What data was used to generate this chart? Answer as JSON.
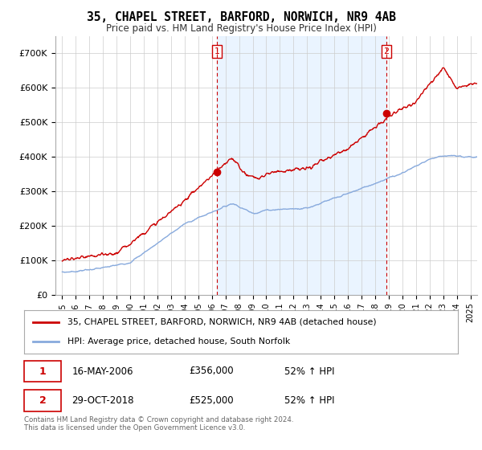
{
  "title": "35, CHAPEL STREET, BARFORD, NORWICH, NR9 4AB",
  "subtitle": "Price paid vs. HM Land Registry's House Price Index (HPI)",
  "ylabel_ticks": [
    "£0",
    "£100K",
    "£200K",
    "£300K",
    "£400K",
    "£500K",
    "£600K",
    "£700K"
  ],
  "ytick_vals": [
    0,
    100000,
    200000,
    300000,
    400000,
    500000,
    600000,
    700000
  ],
  "ylim": [
    0,
    750000
  ],
  "xlim_start": 1994.5,
  "xlim_end": 2025.5,
  "transaction1": {
    "date_num": 2006.37,
    "price": 356000,
    "label": "1",
    "date_str": "16-MAY-2006",
    "price_str": "£356,000",
    "hpi_pct": "52% ↑ HPI"
  },
  "transaction2": {
    "date_num": 2018.83,
    "price": 525000,
    "label": "2",
    "date_str": "29-OCT-2018",
    "price_str": "£525,000",
    "hpi_pct": "52% ↑ HPI"
  },
  "legend_entry1": "35, CHAPEL STREET, BARFORD, NORWICH, NR9 4AB (detached house)",
  "legend_entry2": "HPI: Average price, detached house, South Norfolk",
  "footnote": "Contains HM Land Registry data © Crown copyright and database right 2024.\nThis data is licensed under the Open Government Licence v3.0.",
  "line_color_red": "#cc0000",
  "line_color_blue": "#88aadd",
  "dashed_line_color": "#cc0000",
  "bg_between_color": "#ddeeff",
  "background_color": "#ffffff",
  "grid_color": "#cccccc",
  "xtick_years": [
    1995,
    1996,
    1997,
    1998,
    1999,
    2000,
    2001,
    2002,
    2003,
    2004,
    2005,
    2006,
    2007,
    2008,
    2009,
    2010,
    2011,
    2012,
    2013,
    2014,
    2015,
    2016,
    2017,
    2018,
    2019,
    2020,
    2021,
    2022,
    2023,
    2024,
    2025
  ]
}
